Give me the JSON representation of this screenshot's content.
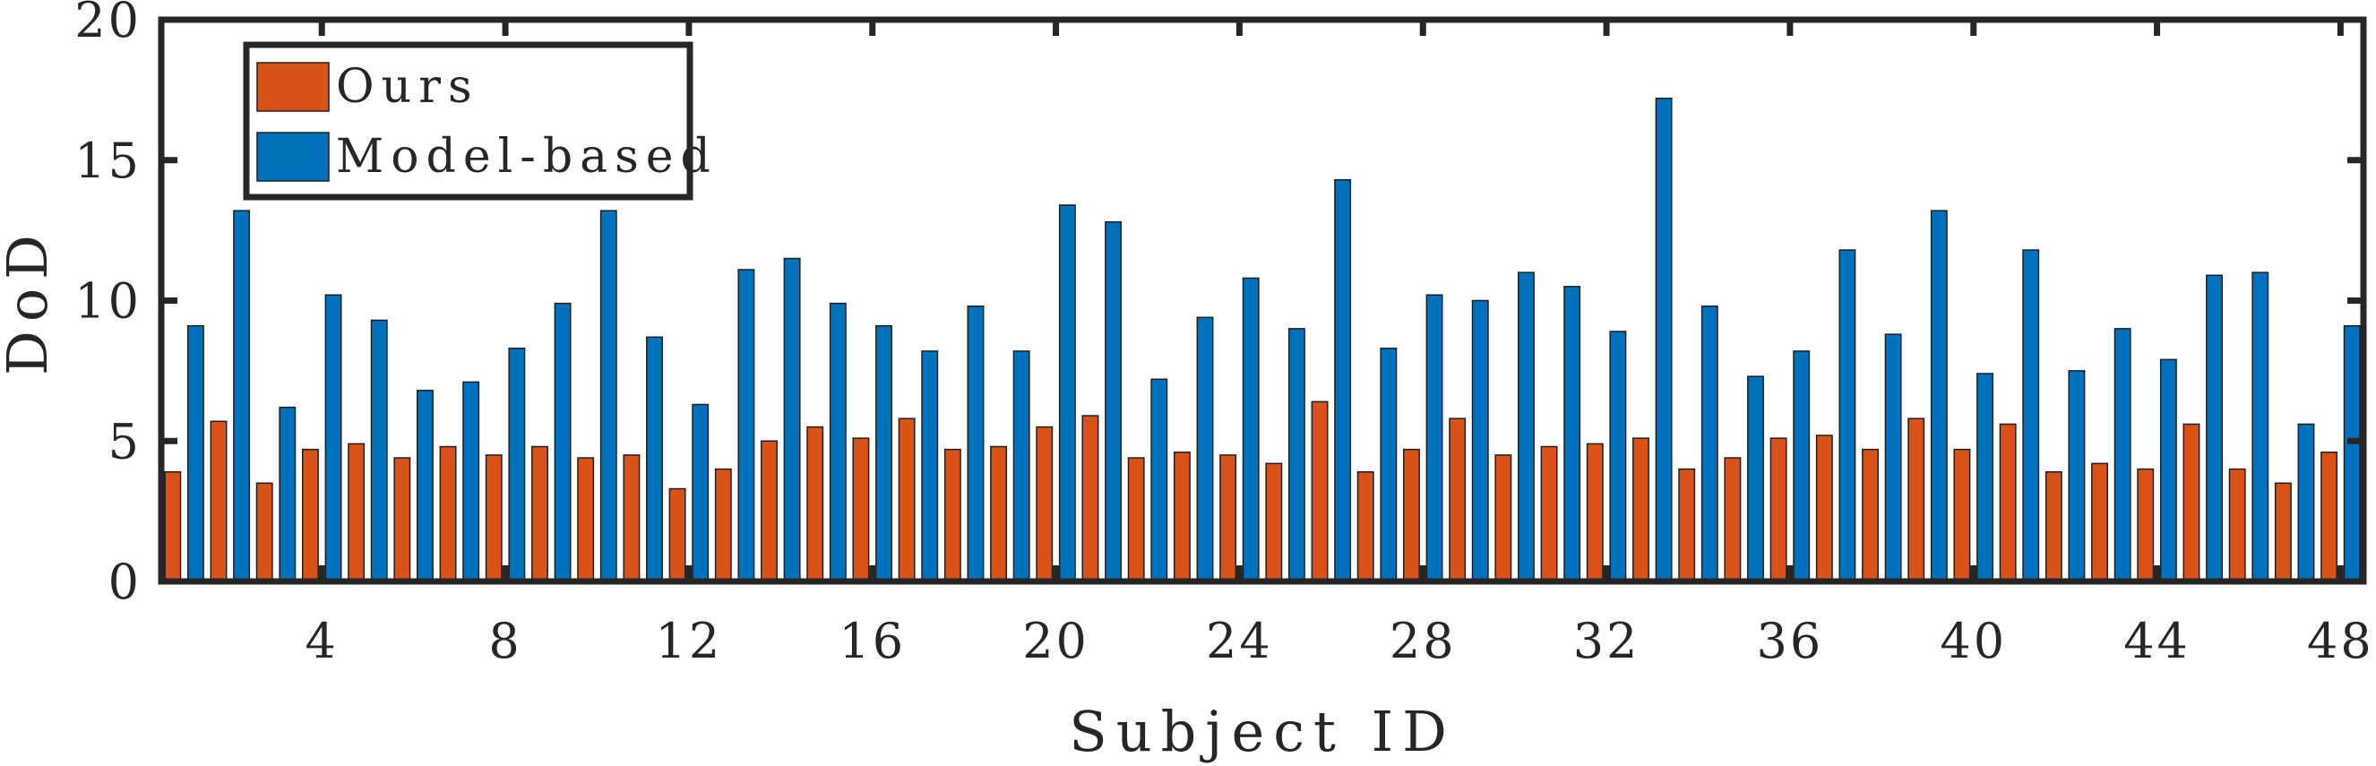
{
  "chart_data": {
    "type": "bar",
    "title": "",
    "xlabel": "Subject ID",
    "ylabel": "DoD",
    "ylim": [
      0,
      20
    ],
    "xlim": [
      0.5,
      48.5
    ],
    "yticks": [
      0,
      5,
      10,
      15,
      20
    ],
    "xticks": [
      4,
      8,
      12,
      16,
      20,
      24,
      28,
      32,
      36,
      40,
      44,
      48
    ],
    "grid": false,
    "legend_position": "top-left",
    "categories": [
      1,
      2,
      3,
      4,
      5,
      6,
      7,
      8,
      9,
      10,
      11,
      12,
      13,
      14,
      15,
      16,
      17,
      18,
      19,
      20,
      21,
      22,
      23,
      24,
      25,
      26,
      27,
      28,
      29,
      30,
      31,
      32,
      33,
      34,
      35,
      36,
      37,
      38,
      39,
      40,
      41,
      42,
      43,
      44,
      45,
      46,
      47,
      48
    ],
    "series": [
      {
        "name": "Ours",
        "color": "#D95319",
        "values": [
          3.9,
          5.7,
          3.5,
          4.7,
          4.9,
          4.4,
          4.8,
          4.5,
          4.8,
          4.4,
          4.5,
          3.3,
          4.0,
          5.0,
          5.5,
          5.1,
          5.8,
          4.7,
          4.8,
          5.5,
          5.9,
          4.4,
          4.6,
          4.5,
          4.2,
          6.4,
          3.9,
          4.7,
          5.8,
          4.5,
          4.8,
          4.9,
          5.1,
          4.0,
          4.4,
          5.1,
          5.2,
          4.7,
          5.8,
          4.7,
          5.6,
          3.9,
          4.2,
          4.0,
          5.6,
          4.0,
          3.5,
          4.6
        ]
      },
      {
        "name": "Model-based",
        "color": "#0072BD",
        "values": [
          9.1,
          13.2,
          6.2,
          10.2,
          9.3,
          6.8,
          7.1,
          8.3,
          9.9,
          13.2,
          8.7,
          6.3,
          11.1,
          11.5,
          9.9,
          9.1,
          8.2,
          9.8,
          8.2,
          13.4,
          12.8,
          7.2,
          9.4,
          10.8,
          9.0,
          14.3,
          8.3,
          10.2,
          10.0,
          11.0,
          10.5,
          8.9,
          17.2,
          9.8,
          7.3,
          8.2,
          11.8,
          8.8,
          13.2,
          7.4,
          11.8,
          7.5,
          9.0,
          7.9,
          10.9,
          11.0,
          5.6,
          9.1
        ]
      }
    ]
  }
}
